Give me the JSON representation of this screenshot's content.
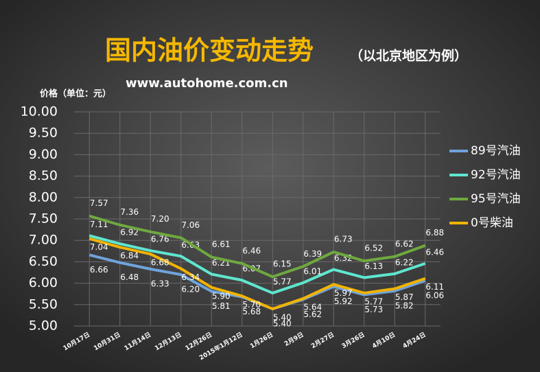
{
  "chart_data": {
    "type": "line",
    "title": "国内油价变动走势",
    "subtitle": "（以北京地区为例）",
    "source": "www.autohome.com.cn",
    "y_label": "价格（单位：元）",
    "categories": [
      "10月17日",
      "10月31日",
      "11月14日",
      "12月13日",
      "12月26日",
      "2015年1月12日",
      "1月26日",
      "2月9日",
      "2月27日",
      "3月26日",
      "4月10日",
      "4月24日"
    ],
    "series": [
      {
        "name": "89号汽油",
        "color": "#6fa3dc",
        "values": [
          6.66,
          6.48,
          6.33,
          6.2,
          5.81,
          5.68,
          5.4,
          5.62,
          5.92,
          5.73,
          5.82,
          6.06
        ],
        "value_labels": [
          "6.66",
          "6.48",
          "6.33",
          "6.20",
          "5.81",
          "5.68",
          "5.40",
          "5.62",
          "5.92",
          "5.73",
          "5.82",
          "6.06"
        ]
      },
      {
        "name": "92号汽油",
        "color": "#5fe6cf",
        "values": [
          7.11,
          6.92,
          6.76,
          6.63,
          6.21,
          6.07,
          5.77,
          6.01,
          6.32,
          6.13,
          6.22,
          6.46
        ],
        "value_labels": [
          "7.11",
          "6.92",
          "6.76",
          "6.63",
          "6.21",
          "6.07",
          "5.77",
          "6.01",
          "6.32",
          "6.13",
          "6.22",
          "6.46"
        ]
      },
      {
        "name": "95号汽油",
        "color": "#6fa83f",
        "values": [
          7.57,
          7.36,
          7.2,
          7.06,
          6.61,
          6.46,
          6.15,
          6.39,
          6.73,
          6.52,
          6.62,
          6.88
        ],
        "value_labels": [
          "7.57",
          "7.36",
          "7.20",
          "7.06",
          "6.61",
          "6.46",
          "6.15",
          "6.39",
          "6.73",
          "6.52",
          "6.62",
          "6.88"
        ]
      },
      {
        "name": "0号柴油",
        "color": "#f2b300",
        "values": [
          7.04,
          6.84,
          6.68,
          6.34,
          5.9,
          5.7,
          5.4,
          5.64,
          5.97,
          5.77,
          5.87,
          6.11
        ],
        "value_labels": [
          "7.04",
          "6.84",
          "6.68",
          "6.34",
          "5.90",
          "5.70",
          "5.40",
          "5.64",
          "5.97",
          "5.77",
          "5.87",
          "6.11"
        ]
      }
    ],
    "ylim": [
      5,
      10
    ],
    "yticks": [
      {
        "value": 5,
        "label": "5.00"
      },
      {
        "value": 5.5,
        "label": "5.50"
      },
      {
        "value": 6,
        "label": "6.00"
      },
      {
        "value": 6.5,
        "label": "6.50"
      },
      {
        "value": 7,
        "label": "7.00"
      },
      {
        "value": 7.5,
        "label": "7.50"
      },
      {
        "value": 8,
        "label": "8.00"
      },
      {
        "value": 8.5,
        "label": "8.50"
      },
      {
        "value": 9,
        "label": "9.00"
      },
      {
        "value": 9.5,
        "label": "9.50"
      },
      {
        "value": 10,
        "label": "10.00"
      }
    ],
    "grid": true,
    "legend": "right"
  }
}
